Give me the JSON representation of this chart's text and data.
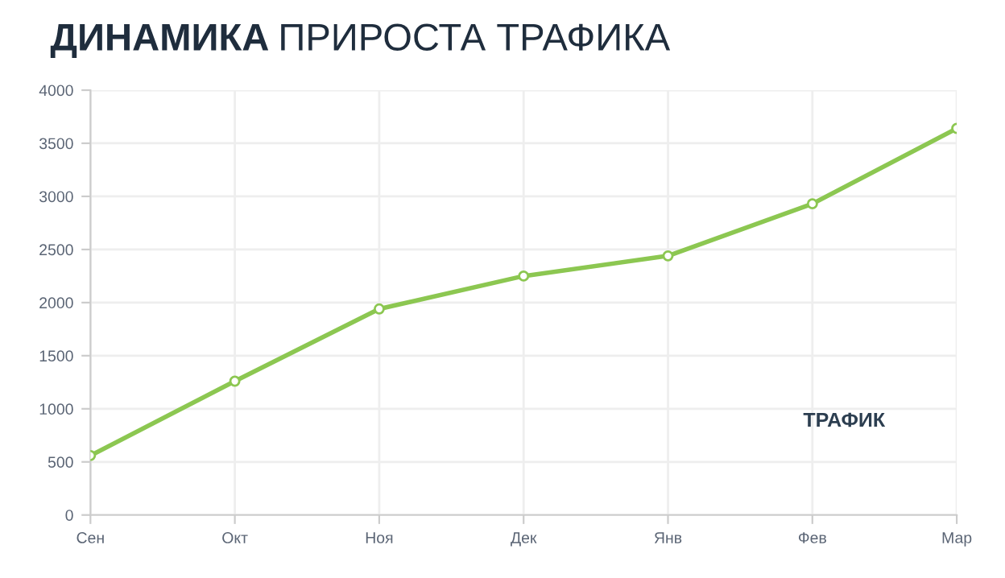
{
  "chart_data": {
    "type": "line",
    "title": "ДИНАМИКА ПРИРОСТА ТРАФИКА",
    "categories": [
      "Сен",
      "Окт",
      "Ноя",
      "Дек",
      "Янв",
      "Фев",
      "Мар"
    ],
    "series": [
      {
        "color": "#8cc751",
        "values": [
          560,
          1260,
          1940,
          2250,
          2440,
          2930,
          3640
        ]
      }
    ],
    "ylim": [
      0,
      4000
    ],
    "yticks": [
      0,
      500,
      1000,
      1500,
      2000,
      2500,
      3000,
      3500,
      4000
    ],
    "grid": true,
    "marker": "circle",
    "line_style": "solid",
    "legend": false,
    "annotations": [
      "ТРАФИК"
    ]
  }
}
